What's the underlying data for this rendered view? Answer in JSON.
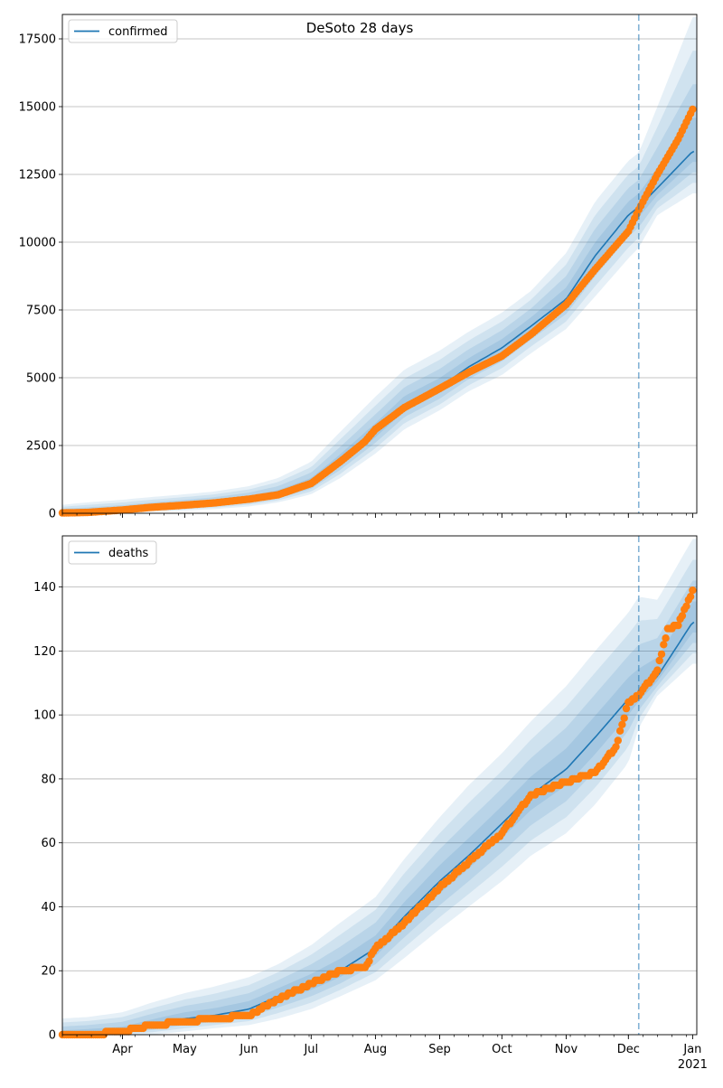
{
  "chart_data": [
    {
      "type": "line",
      "title": "DeSoto 28 days",
      "ylim": [
        0,
        18400
      ],
      "yticks": [
        0,
        2500,
        5000,
        7500,
        10000,
        12500,
        15000,
        17500
      ],
      "ytick_labels": [
        "0",
        "2500",
        "5000",
        "7500",
        "10000",
        "12500",
        "15000",
        "17500"
      ],
      "grid": "horizontal",
      "legend_position": "top-left",
      "series": [
        {
          "name": "confirmed",
          "kind": "line",
          "color": "#1f77b4",
          "x": [
            "2020-03-01",
            "2020-03-15",
            "2020-04-01",
            "2020-04-15",
            "2020-05-01",
            "2020-05-15",
            "2020-06-01",
            "2020-06-15",
            "2020-07-01",
            "2020-07-15",
            "2020-08-01",
            "2020-08-15",
            "2020-09-01",
            "2020-09-15",
            "2020-10-01",
            "2020-10-15",
            "2020-11-01",
            "2020-11-15",
            "2020-12-01",
            "2020-12-06",
            "2020-12-15",
            "2021-01-01"
          ],
          "y": [
            10,
            40,
            100,
            200,
            300,
            380,
            520,
            700,
            1100,
            1900,
            3000,
            4000,
            4650,
            5400,
            6100,
            6900,
            7900,
            9500,
            11000,
            11300,
            12000,
            13350
          ],
          "band_upper": [
            300,
            400,
            500,
            600,
            700,
            800,
            1000,
            1300,
            1900,
            3000,
            4300,
            5300,
            6000,
            6700,
            7400,
            8200,
            9600,
            11500,
            13000,
            13300,
            15000,
            18300
          ],
          "band_lower": [
            0,
            0,
            0,
            50,
            100,
            150,
            250,
            400,
            700,
            1300,
            2200,
            3100,
            3800,
            4500,
            5100,
            5900,
            6800,
            8000,
            9400,
            9800,
            11000,
            11800
          ]
        },
        {
          "name": "",
          "kind": "scatter",
          "color": "#ff7f0e",
          "x": [
            "2020-03-01",
            "2020-03-15",
            "2020-04-01",
            "2020-04-15",
            "2020-05-01",
            "2020-05-15",
            "2020-06-01",
            "2020-06-15",
            "2020-07-01",
            "2020-07-15",
            "2020-07-27",
            "2020-08-01",
            "2020-08-15",
            "2020-09-01",
            "2020-09-15",
            "2020-10-01",
            "2020-10-15",
            "2020-11-01",
            "2020-11-15",
            "2020-12-01",
            "2020-12-06",
            "2020-12-15",
            "2020-12-25",
            "2021-01-01"
          ],
          "y": [
            10,
            30,
            120,
            220,
            300,
            380,
            520,
            680,
            1100,
            1900,
            2650,
            3100,
            3900,
            4600,
            5200,
            5800,
            6600,
            7700,
            9000,
            10400,
            11200,
            12500,
            13800,
            14900
          ]
        }
      ],
      "vline": "2020-12-06"
    },
    {
      "type": "line",
      "xlabel_ticks": [
        "Apr",
        "May",
        "Jun",
        "Jul",
        "Aug",
        "Sep",
        "Oct",
        "Nov",
        "Dec",
        "Jan"
      ],
      "xlabel_year": "2021",
      "xlim": [
        "2020-03-03",
        "2021-01-03"
      ],
      "ylim": [
        0,
        156
      ],
      "yticks": [
        0,
        20,
        40,
        60,
        80,
        100,
        120,
        140
      ],
      "ytick_labels": [
        "0",
        "20",
        "40",
        "60",
        "80",
        "100",
        "120",
        "140"
      ],
      "grid": "horizontal",
      "legend_position": "top-left",
      "series": [
        {
          "name": "deaths",
          "kind": "line",
          "color": "#1f77b4",
          "x": [
            "2020-03-01",
            "2020-03-15",
            "2020-04-01",
            "2020-04-15",
            "2020-05-01",
            "2020-05-15",
            "2020-06-01",
            "2020-06-15",
            "2020-07-01",
            "2020-07-15",
            "2020-08-01",
            "2020-08-15",
            "2020-09-01",
            "2020-09-15",
            "2020-10-01",
            "2020-10-15",
            "2020-11-01",
            "2020-11-15",
            "2020-12-01",
            "2020-12-06",
            "2020-12-15",
            "2021-01-01"
          ],
          "y": [
            0,
            0.5,
            1,
            3,
            5,
            6,
            8,
            12,
            16,
            20,
            27,
            37,
            48,
            56,
            66,
            75,
            83,
            93,
            105,
            107,
            112,
            129
          ],
          "band_upper": [
            5,
            5.5,
            7,
            10,
            13,
            15,
            18,
            22,
            28,
            35,
            43,
            55,
            68,
            78,
            88,
            98,
            109,
            120,
            132,
            137,
            136,
            155
          ],
          "band_lower": [
            0,
            0,
            0,
            0,
            1,
            2,
            3,
            5,
            8,
            12,
            17,
            24,
            33,
            40,
            48,
            56,
            63,
            72,
            85,
            96,
            106,
            116
          ]
        },
        {
          "name": "",
          "kind": "scatter",
          "color": "#ff7f0e",
          "x": [
            "2020-03-01",
            "2020-03-15",
            "2020-04-01",
            "2020-04-15",
            "2020-05-01",
            "2020-05-15",
            "2020-06-01",
            "2020-06-15",
            "2020-07-01",
            "2020-07-15",
            "2020-07-27",
            "2020-08-01",
            "2020-08-15",
            "2020-09-01",
            "2020-09-15",
            "2020-10-01",
            "2020-10-15",
            "2020-11-01",
            "2020-11-15",
            "2020-11-25",
            "2020-12-01",
            "2020-12-06",
            "2020-12-15",
            "2020-12-20",
            "2020-12-25",
            "2021-01-01"
          ],
          "y": [
            0,
            0,
            1,
            3,
            4,
            5,
            6,
            11,
            16,
            20,
            21,
            27,
            35,
            46,
            54,
            63,
            75,
            79,
            82,
            90,
            104,
            106,
            114,
            127,
            128,
            139
          ]
        }
      ],
      "vline": "2020-12-06"
    }
  ]
}
